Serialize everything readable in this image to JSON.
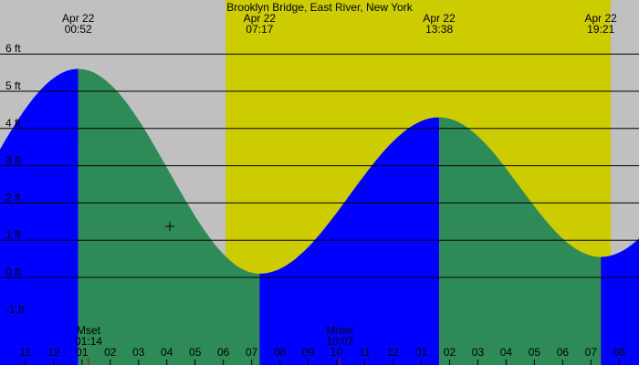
{
  "chart_data": {
    "type": "area",
    "title": "Brooklyn Bridge, East River, New York",
    "y_unit": "ft",
    "ylim": [
      -1.6,
      6.2
    ],
    "y_ticks": [
      {
        "value": 6,
        "label": "6 ft"
      },
      {
        "value": 5,
        "label": "5 ft"
      },
      {
        "value": 4,
        "label": "4 ft"
      },
      {
        "value": 3,
        "label": "3 ft"
      },
      {
        "value": 2,
        "label": "2 ft"
      },
      {
        "value": 1,
        "label": "1 ft"
      },
      {
        "value": 0,
        "label": "0 ft"
      },
      {
        "value": -1,
        "label": "-1 ft"
      }
    ],
    "x_hours_range": [
      -1.9,
      20.7
    ],
    "hour_ticks": [
      {
        "hour": -1,
        "label": "11"
      },
      {
        "hour": 0,
        "label": "12"
      },
      {
        "hour": 1,
        "label": "01"
      },
      {
        "hour": 2,
        "label": "02"
      },
      {
        "hour": 3,
        "label": "03"
      },
      {
        "hour": 4,
        "label": "04"
      },
      {
        "hour": 5,
        "label": "05"
      },
      {
        "hour": 6,
        "label": "06"
      },
      {
        "hour": 7,
        "label": "07"
      },
      {
        "hour": 8,
        "label": "08"
      },
      {
        "hour": 9,
        "label": "09"
      },
      {
        "hour": 10,
        "label": "10"
      },
      {
        "hour": 11,
        "label": "11"
      },
      {
        "hour": 12,
        "label": "12"
      },
      {
        "hour": 13,
        "label": "01"
      },
      {
        "hour": 14,
        "label": "02"
      },
      {
        "hour": 15,
        "label": "03"
      },
      {
        "hour": 16,
        "label": "04"
      },
      {
        "hour": 17,
        "label": "05"
      },
      {
        "hour": 18,
        "label": "06"
      },
      {
        "hour": 19,
        "label": "07"
      },
      {
        "hour": 20,
        "label": "08"
      },
      {
        "hour": 21,
        "label": "09"
      }
    ],
    "tide_extremes": [
      {
        "date": "Apr 22",
        "time": "00:52",
        "hour": 0.867,
        "height": 5.6,
        "kind": "high"
      },
      {
        "date": "Apr 22",
        "time": "07:17",
        "hour": 7.283,
        "height": 0.1,
        "kind": "low"
      },
      {
        "date": "Apr 22",
        "time": "13:38",
        "hour": 13.633,
        "height": 4.3,
        "kind": "high"
      },
      {
        "date": "Apr 22",
        "time": "19:21",
        "hour": 19.35,
        "height": 0.55,
        "kind": "low"
      }
    ],
    "edge_heights": {
      "start": 4.9,
      "end": 2.0
    },
    "daylight_hours": [
      6.08,
      19.7
    ],
    "moon_events": [
      {
        "label": "Mset",
        "time": "01:14",
        "hour": 1.233
      },
      {
        "label": "Mrise",
        "time": "10:07",
        "hour": 10.117
      }
    ],
    "colors": {
      "night": "#c0c0c0",
      "day": "#cccc00",
      "falling": "#2e8b57",
      "rising": "#0000ff",
      "grid": "#000000",
      "moon_tick": "#cc0000"
    }
  }
}
